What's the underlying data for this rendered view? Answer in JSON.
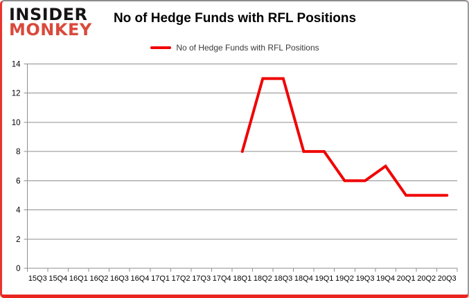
{
  "logo": {
    "line1": "INSIDER",
    "line2": "MONKEY"
  },
  "header": {
    "title": "No of Hedge Funds with RFL Positions"
  },
  "legend": {
    "label": "No of Hedge Funds with RFL Positions",
    "swatch_color": "#f00000"
  },
  "colors": {
    "series_red": "#f00000",
    "grid_gray": "#8e8e8e",
    "axis_label": "#000000",
    "border_red": "#e8251f",
    "logo_red": "#d9493c"
  },
  "chart_data": {
    "type": "line",
    "title": "No of Hedge Funds with RFL Positions",
    "categories": [
      "15Q3",
      "15Q4",
      "16Q1",
      "16Q2",
      "16Q3",
      "16Q4",
      "17Q1",
      "17Q2",
      "17Q3",
      "17Q4",
      "18Q1",
      "18Q2",
      "18Q3",
      "18Q4",
      "19Q1",
      "19Q2",
      "19Q3",
      "19Q4",
      "20Q1",
      "20Q2",
      "20Q3"
    ],
    "series": [
      {
        "name": "No of Hedge Funds with RFL Positions",
        "color": "#f00000",
        "values": [
          null,
          null,
          null,
          null,
          null,
          null,
          null,
          null,
          null,
          null,
          8,
          13,
          13,
          8,
          8,
          6,
          6,
          7,
          5,
          5,
          5
        ]
      }
    ],
    "xlabel": "",
    "ylabel": "",
    "ylim": [
      0,
      14
    ],
    "ytick_step": 2,
    "grid": true,
    "legend_position": "top-center"
  }
}
